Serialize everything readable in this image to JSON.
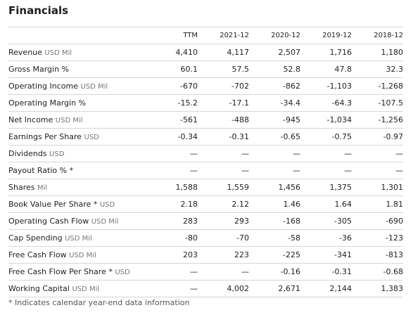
{
  "title": "Financials",
  "columns": [
    "TTM",
    "2021-12",
    "2020-12",
    "2019-12",
    "2018-12"
  ],
  "rows": [
    {
      "label": "Revenue",
      "unit": "USD Mil",
      "values": [
        "4,410",
        "4,117",
        "2,507",
        "1,716",
        "1,180"
      ]
    },
    {
      "label": "Gross Margin %",
      "unit": "",
      "values": [
        "60.1",
        "57.5",
        "52.8",
        "47.8",
        "32.3"
      ]
    },
    {
      "label": "Operating Income",
      "unit": "USD Mil",
      "values": [
        "-670",
        "-702",
        "-862",
        "-1,103",
        "-1,268"
      ]
    },
    {
      "label": "Operating Margin %",
      "unit": "",
      "values": [
        "-15.2",
        "-17.1",
        "-34.4",
        "-64.3",
        "-107.5"
      ]
    },
    {
      "label": "Net Income",
      "unit": "USD Mil",
      "values": [
        "-561",
        "-488",
        "-945",
        "-1,034",
        "-1,256"
      ]
    },
    {
      "label": "Earnings Per Share",
      "unit": "USD",
      "values": [
        "-0.34",
        "-0.31",
        "-0.65",
        "-0.75",
        "-0.97"
      ]
    },
    {
      "label": "Dividends",
      "unit": "USD",
      "values": [
        "—",
        "—",
        "—",
        "—",
        "—"
      ]
    },
    {
      "label": "Payout Ratio % *",
      "unit": "",
      "values": [
        "—",
        "—",
        "—",
        "—",
        "—"
      ]
    },
    {
      "label": "Shares",
      "unit": "Mil",
      "values": [
        "1,588",
        "1,559",
        "1,456",
        "1,375",
        "1,301"
      ]
    },
    {
      "label": "Book Value Per Share *",
      "unit": "USD",
      "values": [
        "2.18",
        "2.12",
        "1.46",
        "1.64",
        "1.81"
      ]
    },
    {
      "label": "Operating Cash Flow",
      "unit": "USD Mil",
      "values": [
        "283",
        "293",
        "-168",
        "-305",
        "-690"
      ]
    },
    {
      "label": "Cap Spending",
      "unit": "USD Mil",
      "values": [
        "-80",
        "-70",
        "-58",
        "-36",
        "-123"
      ]
    },
    {
      "label": "Free Cash Flow",
      "unit": "USD Mil",
      "values": [
        "203",
        "223",
        "-225",
        "-341",
        "-813"
      ]
    },
    {
      "label": "Free Cash Flow Per Share *",
      "unit": "USD",
      "values": [
        "—",
        "—",
        "-0.16",
        "-0.31",
        "-0.68"
      ]
    },
    {
      "label": "Working Capital",
      "unit": "USD Mil",
      "values": [
        "—",
        "4,002",
        "2,671",
        "2,144",
        "1,383"
      ]
    }
  ],
  "footnote": "* Indicates calendar year-end data information"
}
